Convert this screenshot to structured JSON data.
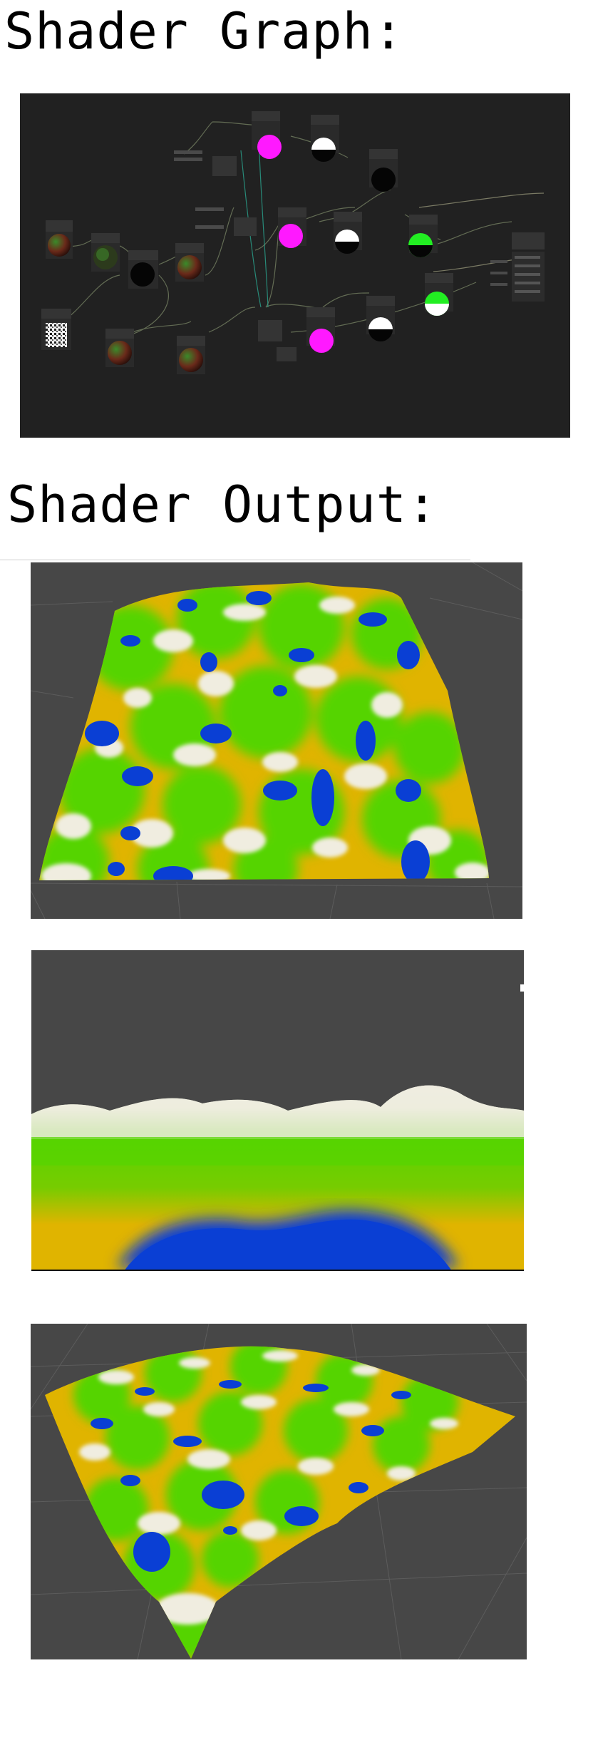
{
  "headings": {
    "graph": "Shader Graph:",
    "output": "Shader Output:"
  },
  "colors": {
    "graph_bg": "#212121",
    "viewport_bg": "#474747",
    "water": "#0a3fd4",
    "sand": "#e8b000",
    "grass": "#55d400",
    "snow": "#efece0",
    "preview_magenta": "#ff19ff",
    "preview_green": "#22ee22"
  },
  "icons": {
    "noise_preview": "noise-texture-icon",
    "sphere_preview": "sphere-preview-icon"
  }
}
